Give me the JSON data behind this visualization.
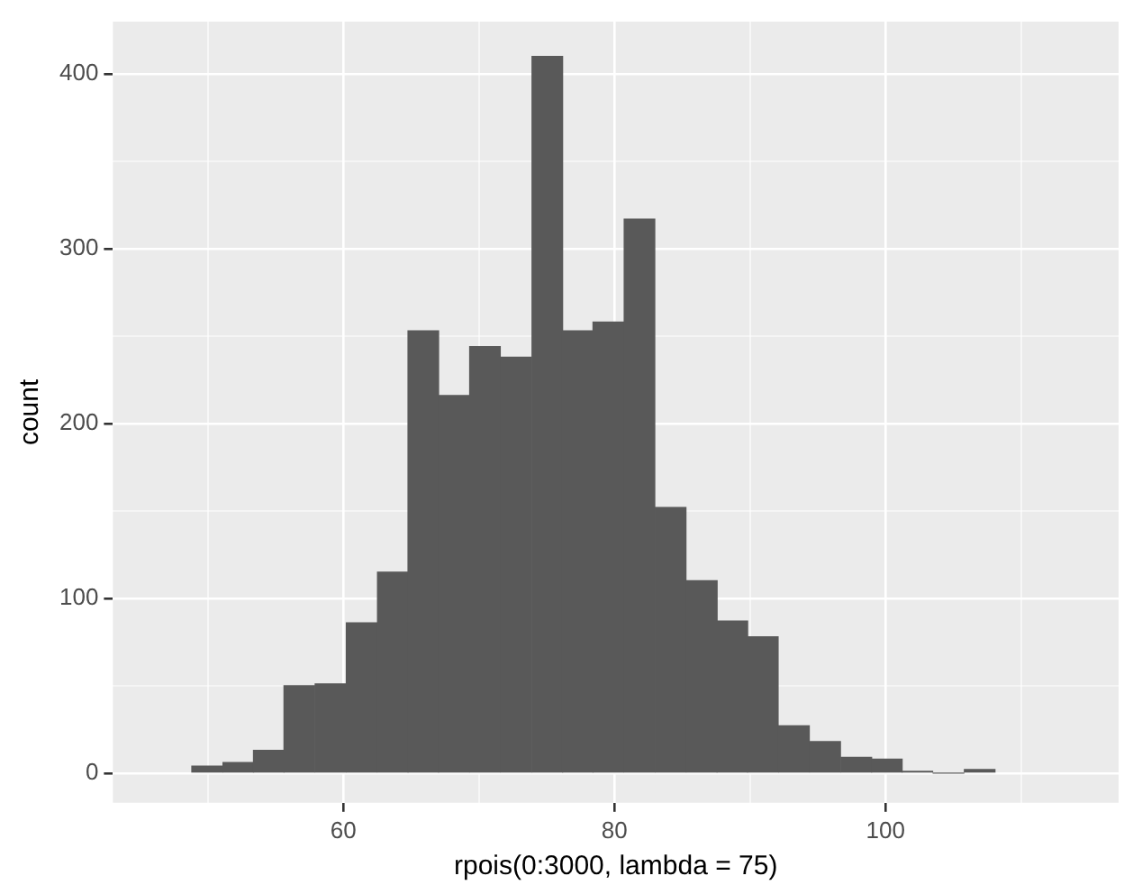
{
  "chart_data": {
    "type": "histogram",
    "xlabel": "rpois(0:3000, lambda = 75)",
    "ylabel": "count",
    "bins": [
      48.8,
      51.1,
      53.4,
      55.6,
      57.9,
      60.2,
      62.5,
      64.8,
      67.0,
      69.3,
      71.6,
      73.9,
      76.2,
      78.4,
      80.7,
      83.0,
      85.3,
      87.6,
      89.8,
      92.1,
      94.4,
      96.7,
      99.0,
      101.2,
      103.5,
      105.8,
      108.1
    ],
    "values": [
      4,
      6,
      13,
      50,
      51,
      86,
      115,
      253,
      216,
      244,
      238,
      410,
      253,
      258,
      317,
      152,
      110,
      87,
      78,
      27,
      18,
      9,
      8,
      1,
      0,
      2
    ],
    "color": "#595959",
    "xlim": [
      43,
      117.2
    ],
    "xticks": [
      {
        "value": 50,
        "label": null
      },
      60,
      {
        "value": 70,
        "label": null
      },
      80,
      {
        "value": 90,
        "label": null
      },
      100,
      {
        "value": 110,
        "label": null
      }
    ],
    "ylim": [
      -17,
      430
    ],
    "yticks": [
      0,
      {
        "value": 50,
        "label": null
      },
      100,
      {
        "value": 150,
        "label": null
      },
      200,
      {
        "value": 250,
        "label": null
      },
      300,
      {
        "value": 350,
        "label": null
      },
      400
    ],
    "grid": true
  }
}
